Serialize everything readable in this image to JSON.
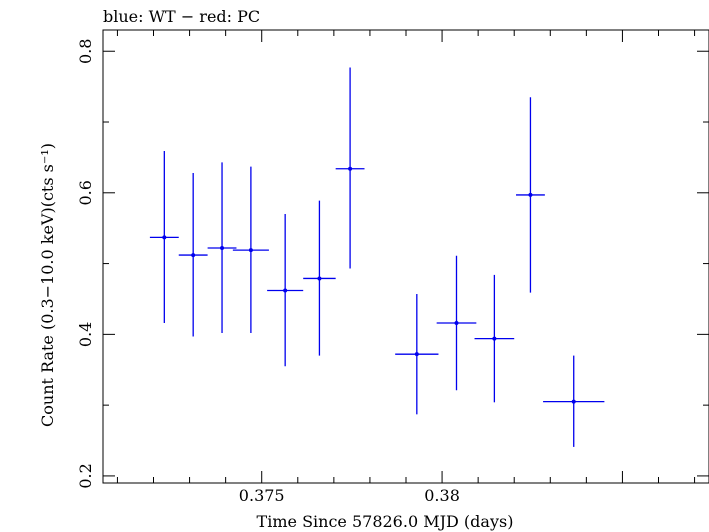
{
  "chart_data": {
    "type": "scatter",
    "title": "blue: WT − red: PC",
    "xlabel": "Time Since 57826.0 MJD (days)",
    "ylabel": "Count Rate (0.3−10.0 keV)(cts s⁻¹)",
    "xlim": [
      0.3706,
      0.3874
    ],
    "ylim": [
      0.19,
      0.83
    ],
    "x_ticks": [
      {
        "value": 0.375,
        "label": "0.375"
      },
      {
        "value": 0.38,
        "label": "0.38"
      }
    ],
    "y_ticks": [
      {
        "value": 0.2,
        "label": "0.2"
      },
      {
        "value": 0.4,
        "label": "0.4"
      },
      {
        "value": 0.6,
        "label": "0.6"
      },
      {
        "value": 0.8,
        "label": "0.8"
      }
    ],
    "grid": false,
    "series": [
      {
        "color": "#0000ee",
        "points": [
          {
            "x": 0.3723,
            "xerr": 0.0004,
            "y": 0.537,
            "yerr_low": 0.121,
            "yerr_high": 0.122
          },
          {
            "x": 0.3731,
            "xerr": 0.0004,
            "y": 0.512,
            "yerr_low": 0.115,
            "yerr_high": 0.116
          },
          {
            "x": 0.3739,
            "xerr": 0.0004,
            "y": 0.522,
            "yerr_low": 0.12,
            "yerr_high": 0.121
          },
          {
            "x": 0.3747,
            "xerr": 0.0005,
            "y": 0.519,
            "yerr_low": 0.117,
            "yerr_high": 0.118
          },
          {
            "x": 0.37565,
            "xerr": 0.0005,
            "y": 0.462,
            "yerr_low": 0.107,
            "yerr_high": 0.108
          },
          {
            "x": 0.3766,
            "xerr": 0.00045,
            "y": 0.479,
            "yerr_low": 0.109,
            "yerr_high": 0.11
          },
          {
            "x": 0.37745,
            "xerr": 0.0004,
            "y": 0.634,
            "yerr_low": 0.141,
            "yerr_high": 0.143
          },
          {
            "x": 0.3793,
            "xerr": 0.0006,
            "y": 0.372,
            "yerr_low": 0.085,
            "yerr_high": 0.085
          },
          {
            "x": 0.3804,
            "xerr": 0.00055,
            "y": 0.416,
            "yerr_low": 0.095,
            "yerr_high": 0.095
          },
          {
            "x": 0.38145,
            "xerr": 0.00055,
            "y": 0.394,
            "yerr_low": 0.09,
            "yerr_high": 0.09
          },
          {
            "x": 0.38245,
            "xerr": 0.0004,
            "y": 0.597,
            "yerr_low": 0.138,
            "yerr_high": 0.138
          },
          {
            "x": 0.38365,
            "xerr": 0.00085,
            "y": 0.305,
            "yerr_low": 0.064,
            "yerr_high": 0.065
          }
        ]
      }
    ]
  }
}
